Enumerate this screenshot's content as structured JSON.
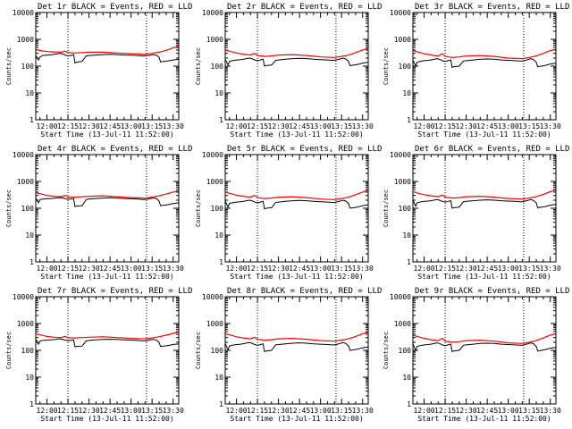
{
  "chart_data": {
    "type": "line",
    "layout": {
      "rows": 3,
      "cols": 3
    },
    "x_ticks": [
      "12:00",
      "12:15",
      "12:30",
      "12:45",
      "13:00",
      "13:15",
      "13:30"
    ],
    "x_tick_minutes": [
      0,
      15,
      30,
      45,
      60,
      75,
      90
    ],
    "x_range_minutes": [
      -8,
      94
    ],
    "y_scale": "log",
    "ylim": [
      1,
      10000
    ],
    "y_ticks": [
      "1",
      "10",
      "100",
      "1000",
      "10000"
    ],
    "y_tick_values": [
      1,
      10,
      100,
      1000,
      10000
    ],
    "xlabel": "Start Time (13-Jul-11 11:52:00)",
    "ylabel": "Counts/sec",
    "vertical_markers_minutes": [
      15,
      71
    ],
    "series_colors": {
      "events": "#000000",
      "lld": "#ff0000"
    },
    "panels": [
      {
        "title": "Det 1r BLACK = Events, RED = LLD",
        "events": {
          "x": [
            -8,
            -6,
            -5,
            -3,
            0,
            3,
            6,
            9,
            11,
            13,
            15,
            17,
            19,
            20,
            21,
            25,
            28,
            30,
            35,
            40,
            45,
            50,
            55,
            60,
            65,
            68,
            70,
            72,
            74,
            76,
            78,
            80,
            81,
            86,
            90,
            94
          ],
          "y": [
            250,
            170,
            220,
            250,
            260,
            265,
            280,
            300,
            290,
            260,
            240,
            250,
            270,
            130,
            140,
            150,
            240,
            250,
            260,
            270,
            275,
            270,
            260,
            255,
            250,
            240,
            240,
            250,
            260,
            270,
            260,
            210,
            145,
            155,
            170,
            180
          ]
        },
        "lld": {
          "x": [
            -8,
            -3,
            0,
            5,
            10,
            13,
            15,
            20,
            25,
            30,
            40,
            50,
            60,
            70,
            75,
            80,
            85,
            90,
            94
          ],
          "y": [
            420,
            370,
            350,
            340,
            330,
            360,
            320,
            310,
            320,
            330,
            330,
            310,
            290,
            280,
            300,
            330,
            390,
            480,
            560
          ]
        }
      },
      {
        "title": "Det 2r BLACK = Events, RED = LLD",
        "events": {
          "x": [
            -8,
            -6,
            -5,
            -3,
            0,
            3,
            6,
            9,
            11,
            13,
            15,
            17,
            19,
            20,
            21,
            25,
            28,
            30,
            35,
            40,
            45,
            50,
            55,
            60,
            65,
            68,
            70,
            72,
            74,
            76,
            78,
            80,
            81,
            86,
            90,
            94
          ],
          "y": [
            180,
            110,
            150,
            160,
            170,
            175,
            185,
            200,
            190,
            170,
            160,
            170,
            180,
            100,
            105,
            110,
            165,
            170,
            180,
            190,
            195,
            190,
            180,
            175,
            170,
            165,
            165,
            175,
            185,
            200,
            185,
            150,
            105,
            115,
            130,
            140
          ]
        },
        "lld": {
          "x": [
            -8,
            -3,
            0,
            5,
            10,
            13,
            15,
            20,
            25,
            30,
            40,
            50,
            60,
            70,
            75,
            80,
            85,
            90,
            94
          ],
          "y": [
            400,
            340,
            310,
            280,
            260,
            300,
            250,
            230,
            240,
            260,
            270,
            250,
            220,
            210,
            230,
            260,
            320,
            400,
            460
          ]
        }
      },
      {
        "title": "Det 3r BLACK = Events, RED = LLD",
        "events": {
          "x": [
            -8,
            -6,
            -5,
            -3,
            0,
            3,
            6,
            9,
            11,
            13,
            15,
            17,
            19,
            20,
            21,
            25,
            28,
            30,
            35,
            40,
            45,
            50,
            55,
            60,
            65,
            68,
            70,
            72,
            74,
            76,
            78,
            80,
            81,
            86,
            90,
            94
          ],
          "y": [
            170,
            100,
            140,
            150,
            160,
            165,
            175,
            190,
            180,
            160,
            150,
            160,
            170,
            90,
            95,
            100,
            155,
            160,
            170,
            180,
            185,
            180,
            170,
            165,
            160,
            155,
            155,
            165,
            175,
            190,
            175,
            140,
            95,
            105,
            120,
            130
          ]
        },
        "lld": {
          "x": [
            -8,
            -3,
            0,
            5,
            10,
            13,
            15,
            20,
            25,
            30,
            40,
            50,
            60,
            70,
            75,
            80,
            85,
            90,
            94
          ],
          "y": [
            380,
            320,
            290,
            260,
            240,
            290,
            230,
            210,
            220,
            240,
            250,
            230,
            200,
            190,
            210,
            240,
            300,
            380,
            430
          ]
        }
      },
      {
        "title": "Det 4r BLACK = Events, RED = LLD",
        "events": {
          "x": [
            -8,
            -6,
            -5,
            -3,
            0,
            3,
            6,
            9,
            11,
            13,
            15,
            17,
            19,
            20,
            21,
            25,
            28,
            30,
            35,
            40,
            45,
            50,
            55,
            60,
            65,
            68,
            70,
            72,
            74,
            76,
            78,
            80,
            81,
            86,
            90,
            94
          ],
          "y": [
            240,
            160,
            210,
            220,
            225,
            230,
            240,
            250,
            245,
            225,
            215,
            220,
            230,
            115,
            120,
            125,
            210,
            220,
            230,
            240,
            245,
            240,
            230,
            225,
            220,
            210,
            210,
            220,
            230,
            240,
            230,
            185,
            125,
            135,
            150,
            160
          ]
        },
        "lld": {
          "x": [
            -8,
            -3,
            0,
            5,
            10,
            13,
            15,
            20,
            25,
            30,
            40,
            50,
            60,
            70,
            75,
            80,
            85,
            90,
            94
          ],
          "y": [
            380,
            330,
            300,
            280,
            270,
            300,
            265,
            260,
            270,
            280,
            290,
            270,
            250,
            240,
            260,
            290,
            340,
            400,
            450
          ]
        }
      },
      {
        "title": "Det 5r BLACK = Events, RED = LLD",
        "events": {
          "x": [
            -8,
            -6,
            -5,
            -3,
            0,
            3,
            6,
            9,
            11,
            13,
            15,
            17,
            19,
            20,
            21,
            25,
            28,
            30,
            35,
            40,
            45,
            50,
            55,
            60,
            65,
            68,
            70,
            72,
            74,
            76,
            78,
            80,
            81,
            86,
            90,
            94
          ],
          "y": [
            190,
            110,
            150,
            160,
            170,
            175,
            185,
            200,
            190,
            170,
            160,
            170,
            180,
            95,
            100,
            105,
            165,
            170,
            180,
            190,
            195,
            190,
            180,
            175,
            170,
            165,
            165,
            175,
            185,
            200,
            185,
            150,
            100,
            110,
            125,
            135
          ]
        },
        "lld": {
          "x": [
            -8,
            -3,
            0,
            5,
            10,
            13,
            15,
            20,
            25,
            30,
            40,
            50,
            60,
            70,
            75,
            80,
            85,
            90,
            94
          ],
          "y": [
            400,
            340,
            310,
            280,
            260,
            300,
            250,
            230,
            240,
            260,
            270,
            250,
            220,
            210,
            230,
            260,
            320,
            400,
            470
          ]
        }
      },
      {
        "title": "Det 6r BLACK = Events, RED = LLD",
        "events": {
          "x": [
            -8,
            -6,
            -5,
            -3,
            0,
            3,
            6,
            9,
            11,
            13,
            15,
            17,
            19,
            20,
            21,
            25,
            28,
            30,
            35,
            40,
            45,
            50,
            55,
            60,
            65,
            68,
            70,
            72,
            74,
            76,
            78,
            80,
            81,
            86,
            90,
            94
          ],
          "y": [
            200,
            120,
            160,
            170,
            180,
            185,
            195,
            210,
            200,
            180,
            170,
            180,
            190,
            100,
            105,
            110,
            175,
            180,
            190,
            200,
            205,
            200,
            190,
            185,
            180,
            175,
            175,
            185,
            195,
            210,
            195,
            160,
            105,
            115,
            130,
            140
          ]
        },
        "lld": {
          "x": [
            -8,
            -3,
            0,
            5,
            10,
            13,
            15,
            20,
            25,
            30,
            40,
            50,
            60,
            70,
            75,
            80,
            85,
            90,
            94
          ],
          "y": [
            410,
            350,
            320,
            290,
            270,
            310,
            260,
            240,
            250,
            270,
            280,
            260,
            230,
            220,
            240,
            270,
            330,
            410,
            480
          ]
        }
      },
      {
        "title": "Det 7r BLACK = Events, RED = LLD",
        "events": {
          "x": [
            -8,
            -6,
            -5,
            -3,
            0,
            3,
            6,
            9,
            11,
            13,
            15,
            17,
            19,
            20,
            21,
            25,
            28,
            30,
            35,
            40,
            45,
            50,
            55,
            60,
            65,
            68,
            70,
            72,
            74,
            76,
            78,
            80,
            81,
            86,
            90,
            94
          ],
          "y": [
            260,
            170,
            220,
            235,
            240,
            245,
            255,
            270,
            260,
            240,
            230,
            235,
            245,
            135,
            140,
            145,
            225,
            235,
            245,
            255,
            260,
            255,
            245,
            240,
            235,
            225,
            225,
            235,
            245,
            255,
            245,
            200,
            140,
            150,
            165,
            175
          ]
        },
        "lld": {
          "x": [
            -8,
            -3,
            0,
            5,
            10,
            13,
            15,
            20,
            25,
            30,
            40,
            50,
            60,
            70,
            75,
            80,
            85,
            90,
            94
          ],
          "y": [
            410,
            360,
            330,
            310,
            300,
            330,
            295,
            290,
            300,
            310,
            320,
            300,
            280,
            270,
            290,
            320,
            370,
            430,
            490
          ]
        }
      },
      {
        "title": "Det 8r BLACK = Events, RED = LLD",
        "events": {
          "x": [
            -8,
            -6,
            -5,
            -3,
            0,
            3,
            6,
            9,
            11,
            13,
            15,
            17,
            19,
            20,
            21,
            25,
            28,
            30,
            35,
            40,
            45,
            50,
            55,
            60,
            65,
            68,
            70,
            72,
            74,
            76,
            78,
            80,
            81,
            86,
            90,
            94
          ],
          "y": [
            180,
            105,
            145,
            155,
            165,
            170,
            180,
            195,
            185,
            165,
            155,
            165,
            175,
            90,
            95,
            100,
            160,
            165,
            175,
            185,
            190,
            185,
            175,
            170,
            165,
            160,
            160,
            170,
            180,
            195,
            180,
            145,
            100,
            110,
            125,
            135
          ]
        },
        "lld": {
          "x": [
            -8,
            -3,
            0,
            5,
            10,
            13,
            15,
            20,
            25,
            30,
            40,
            50,
            60,
            70,
            75,
            80,
            85,
            90,
            94
          ],
          "y": [
            420,
            360,
            320,
            290,
            270,
            310,
            260,
            240,
            250,
            270,
            280,
            260,
            230,
            220,
            240,
            270,
            330,
            410,
            470
          ]
        }
      },
      {
        "title": "Det 9r BLACK = Events, RED = LLD",
        "events": {
          "x": [
            -8,
            -6,
            -5,
            -3,
            0,
            3,
            6,
            9,
            11,
            13,
            15,
            17,
            19,
            20,
            21,
            25,
            28,
            30,
            35,
            40,
            45,
            50,
            55,
            60,
            65,
            68,
            70,
            72,
            74,
            76,
            78,
            80,
            81,
            86,
            90,
            94
          ],
          "y": [
            175,
            100,
            140,
            150,
            160,
            165,
            175,
            190,
            180,
            160,
            150,
            160,
            170,
            90,
            95,
            100,
            155,
            160,
            170,
            180,
            185,
            180,
            170,
            165,
            160,
            155,
            155,
            165,
            175,
            190,
            175,
            140,
            95,
            105,
            120,
            130
          ]
        },
        "lld": {
          "x": [
            -8,
            -3,
            0,
            5,
            10,
            13,
            15,
            20,
            25,
            30,
            40,
            50,
            60,
            70,
            75,
            80,
            85,
            90,
            94
          ],
          "y": [
            370,
            310,
            280,
            250,
            230,
            280,
            220,
            200,
            210,
            230,
            240,
            220,
            190,
            180,
            200,
            230,
            290,
            370,
            420
          ]
        }
      }
    ]
  }
}
